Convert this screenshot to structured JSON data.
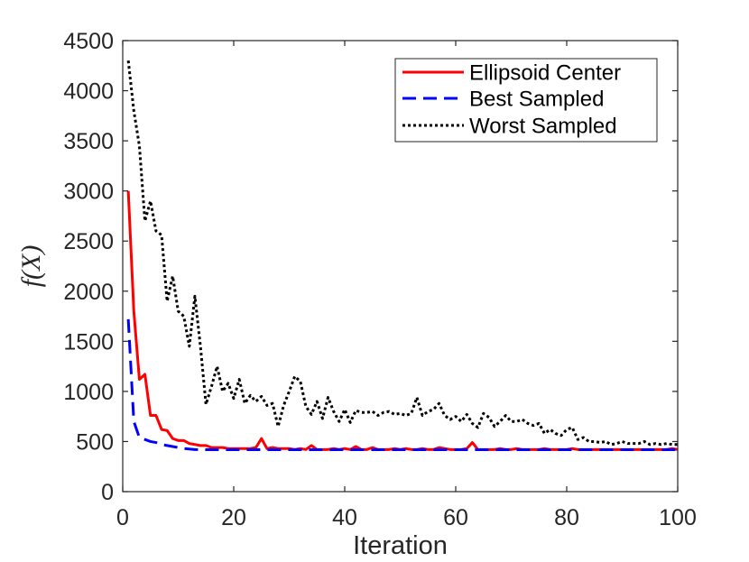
{
  "chart_data": {
    "type": "line",
    "title": "",
    "xlabel": "Iteration",
    "ylabel": "f(X)",
    "xlim": [
      0,
      100
    ],
    "ylim": [
      0,
      4500
    ],
    "xticks": [
      0,
      20,
      40,
      60,
      80,
      100
    ],
    "yticks": [
      0,
      500,
      1000,
      1500,
      2000,
      2500,
      3000,
      3500,
      4000,
      4500
    ],
    "legend_position": "top-right",
    "grid": false,
    "series": [
      {
        "name": "Ellipsoid Center",
        "color": "#ff0000",
        "style": "solid",
        "x": [
          1,
          2,
          3,
          4,
          5,
          6,
          7,
          8,
          9,
          10,
          11,
          12,
          13,
          14,
          15,
          16,
          17,
          18,
          19,
          20,
          21,
          22,
          23,
          24,
          25,
          26,
          27,
          28,
          29,
          30,
          31,
          32,
          33,
          34,
          35,
          36,
          37,
          38,
          39,
          40,
          41,
          42,
          43,
          44,
          45,
          46,
          47,
          48,
          49,
          50,
          51,
          52,
          53,
          54,
          55,
          56,
          57,
          58,
          59,
          60,
          61,
          62,
          63,
          64,
          65,
          66,
          67,
          68,
          69,
          70,
          71,
          72,
          73,
          74,
          75,
          76,
          77,
          78,
          79,
          80,
          81,
          82,
          83,
          84,
          85,
          86,
          87,
          88,
          89,
          90,
          91,
          92,
          93,
          94,
          95,
          96,
          97,
          98,
          99,
          100
        ],
        "y": [
          3000,
          1800,
          1120,
          1170,
          760,
          760,
          620,
          610,
          530,
          510,
          510,
          480,
          470,
          460,
          460,
          440,
          440,
          440,
          430,
          430,
          430,
          430,
          430,
          440,
          530,
          430,
          440,
          430,
          430,
          430,
          420,
          430,
          420,
          460,
          420,
          420,
          420,
          430,
          420,
          430,
          420,
          450,
          420,
          420,
          440,
          420,
          420,
          420,
          430,
          420,
          430,
          420,
          420,
          430,
          420,
          420,
          440,
          430,
          420,
          420,
          420,
          430,
          490,
          420,
          420,
          420,
          420,
          430,
          420,
          420,
          430,
          420,
          420,
          420,
          420,
          430,
          420,
          420,
          420,
          420,
          430,
          420,
          420,
          420,
          420,
          420,
          420,
          420,
          420,
          420,
          420,
          420,
          420,
          420,
          420,
          420,
          420,
          420,
          430,
          420
        ]
      },
      {
        "name": "Best Sampled",
        "color": "#0000ff",
        "style": "dashed",
        "x": [
          1,
          2,
          3,
          4,
          5,
          6,
          7,
          8,
          9,
          10,
          11,
          12,
          13,
          14,
          15,
          16,
          17,
          18,
          19,
          20,
          22,
          25,
          30,
          35,
          40,
          45,
          50,
          55,
          60,
          65,
          70,
          75,
          80,
          85,
          90,
          95,
          100
        ],
        "y": [
          1720,
          700,
          540,
          520,
          500,
          490,
          470,
          460,
          450,
          440,
          430,
          425,
          420,
          420,
          418,
          418,
          418,
          418,
          418,
          418,
          418,
          418,
          418,
          418,
          418,
          418,
          418,
          418,
          418,
          418,
          418,
          418,
          418,
          418,
          418,
          418,
          418
        ]
      },
      {
        "name": "Worst Sampled",
        "color": "#000000",
        "style": "dotted",
        "x": [
          1,
          2,
          3,
          4,
          5,
          6,
          7,
          8,
          9,
          10,
          11,
          12,
          13,
          14,
          15,
          16,
          17,
          18,
          19,
          20,
          21,
          22,
          23,
          24,
          25,
          26,
          27,
          28,
          29,
          30,
          31,
          32,
          33,
          34,
          35,
          36,
          37,
          38,
          39,
          40,
          41,
          42,
          43,
          44,
          45,
          46,
          47,
          48,
          49,
          50,
          51,
          52,
          53,
          54,
          55,
          56,
          57,
          58,
          59,
          60,
          61,
          62,
          63,
          64,
          65,
          66,
          67,
          68,
          69,
          70,
          71,
          72,
          73,
          74,
          75,
          76,
          77,
          78,
          79,
          80,
          81,
          82,
          83,
          84,
          85,
          86,
          87,
          88,
          89,
          90,
          91,
          92,
          93,
          94,
          95,
          96,
          97,
          98,
          99,
          100
        ],
        "y": [
          4300,
          3800,
          3450,
          2700,
          2900,
          2600,
          2560,
          1900,
          2150,
          1800,
          1750,
          1450,
          1950,
          1450,
          870,
          1050,
          1250,
          1000,
          1080,
          930,
          1120,
          880,
          960,
          900,
          950,
          860,
          880,
          650,
          860,
          1000,
          1150,
          1100,
          850,
          770,
          900,
          730,
          940,
          800,
          700,
          820,
          690,
          810,
          790,
          790,
          800,
          760,
          790,
          800,
          770,
          780,
          760,
          780,
          940,
          760,
          800,
          820,
          880,
          760,
          720,
          750,
          700,
          770,
          680,
          640,
          780,
          740,
          650,
          700,
          760,
          700,
          700,
          720,
          680,
          660,
          680,
          580,
          620,
          580,
          560,
          620,
          640,
          520,
          540,
          500,
          500,
          490,
          500,
          470,
          480,
          500,
          480,
          480,
          480,
          500,
          470,
          480,
          470,
          480,
          470,
          470
        ]
      }
    ]
  }
}
